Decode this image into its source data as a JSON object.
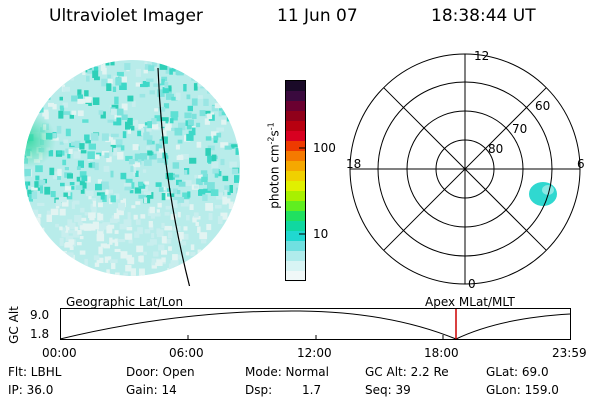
{
  "header": {
    "instrument": "Ultraviolet Imager",
    "date": "11 Jun 07",
    "time": "18:38:44 UT"
  },
  "colorbar": {
    "unit_label": "photon cm",
    "unit_exp1": "-2",
    "unit_mid": "s",
    "unit_exp2": "-1",
    "ticks": [
      "100",
      "10"
    ],
    "colors": [
      "#1a0a28",
      "#3a0a3e",
      "#6a0030",
      "#90001a",
      "#b80010",
      "#d80020",
      "#ee3a00",
      "#f57a00",
      "#f5a800",
      "#f0d000",
      "#e0f000",
      "#a8f000",
      "#60ee20",
      "#20e060",
      "#10d8a0",
      "#20d8d0",
      "#70e0e0",
      "#b0ecec",
      "#d8f4f4",
      "#f0f8f8"
    ]
  },
  "polar": {
    "labels": [
      "12",
      "18",
      "6",
      "0",
      "60",
      "70",
      "80"
    ]
  },
  "timeline": {
    "left_label": "Geographic Lat/Lon",
    "right_label": "Apex  MLat/MLT",
    "axis_title": "GC Alt",
    "y_ticks": [
      "9.0",
      "1.8"
    ],
    "x_ticks": [
      "00:00",
      "06:00",
      "12:00",
      "18:00",
      "23:59"
    ],
    "marker_color": "#cc0000"
  },
  "info": {
    "filter": "Flt: LBHL",
    "ip": "IP: 36.0",
    "door": "Door: Open",
    "gain": "Gain: 14",
    "mode": "Mode: Normal",
    "dsp_label": "Dsp:",
    "dsp_value": "1.7",
    "gc_alt": "GC Alt: 2.2 Re",
    "seq": "Seq: 39",
    "glat": "GLat:  69.0",
    "glon": "GLon: 159.0"
  }
}
